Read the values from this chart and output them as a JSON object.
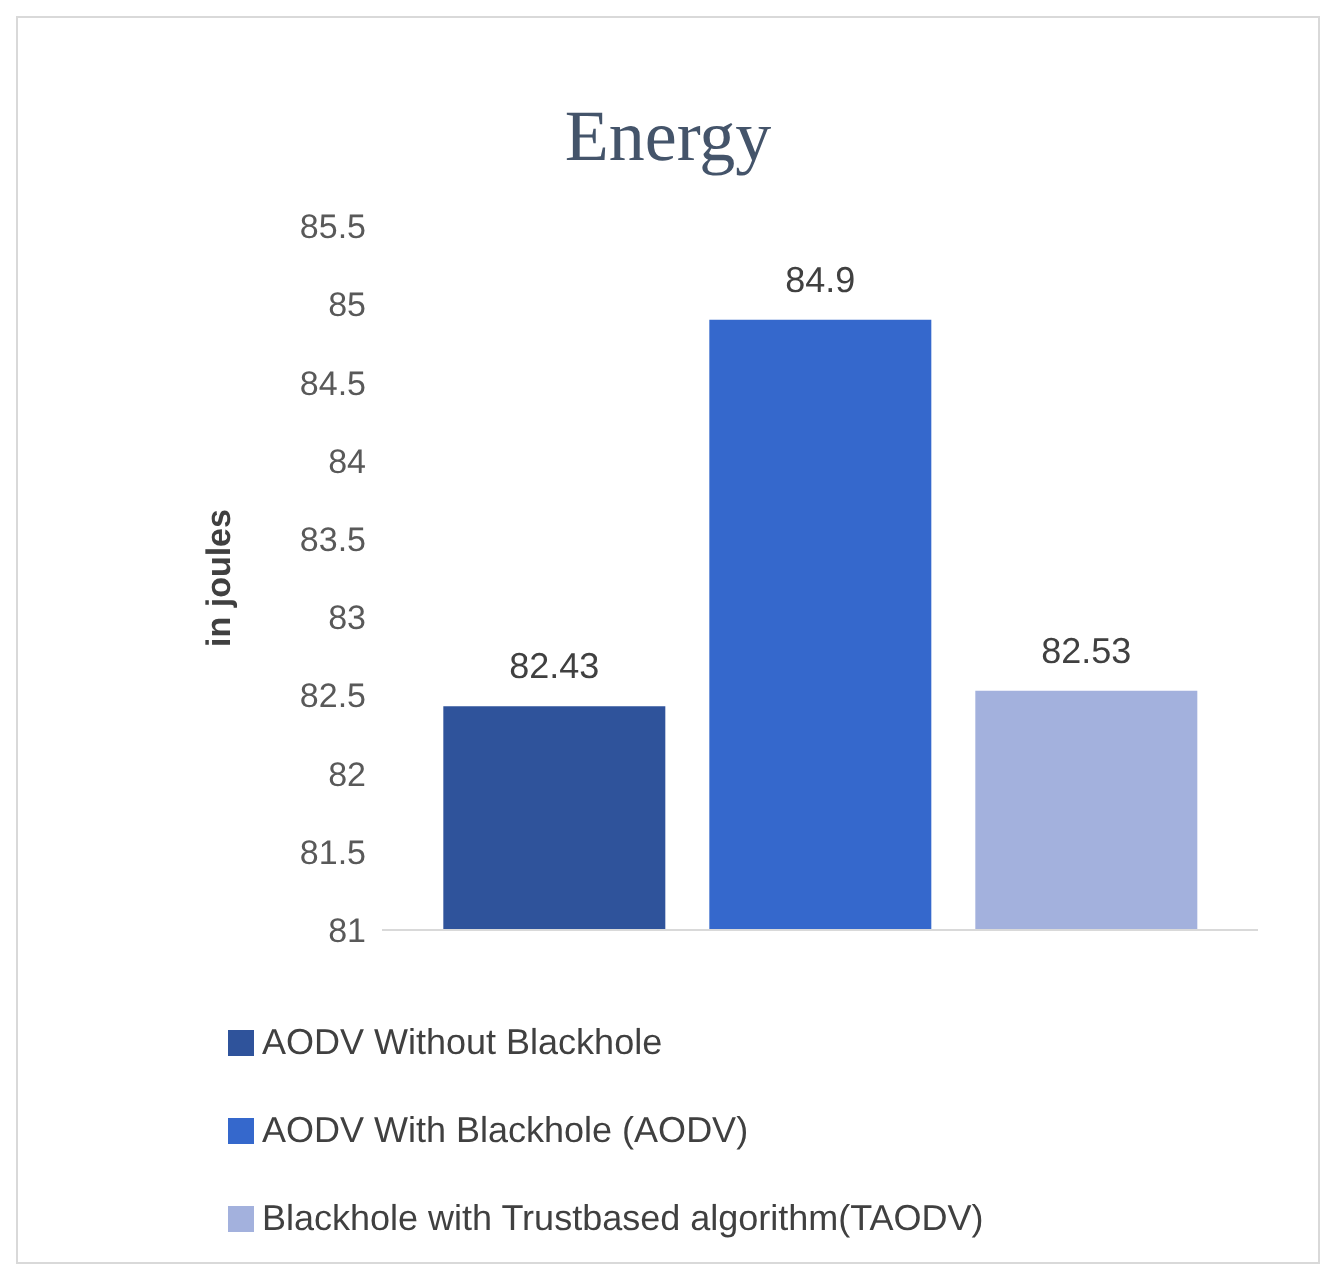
{
  "chart_data": {
    "type": "bar",
    "title": "Energy",
    "ylabel": "in joules",
    "categories": [
      null
    ],
    "series": [
      {
        "name": "AODV Without Blackhole",
        "color": "#2f539b",
        "values": [
          82.43
        ]
      },
      {
        "name": "AODV With Blackhole (AODV)",
        "color": "#3568cc",
        "values": [
          84.9
        ]
      },
      {
        "name": "Blackhole with Trustbased algorithm(TAODV)",
        "color": "#a3b1dd",
        "values": [
          82.53
        ]
      }
    ],
    "ylim": [
      81,
      85.5
    ],
    "yticks": [
      81,
      81.5,
      82,
      82.5,
      83,
      83.5,
      84,
      84.5,
      85,
      85.5
    ],
    "grid": false,
    "legend": "bottom",
    "data_labels": true
  }
}
